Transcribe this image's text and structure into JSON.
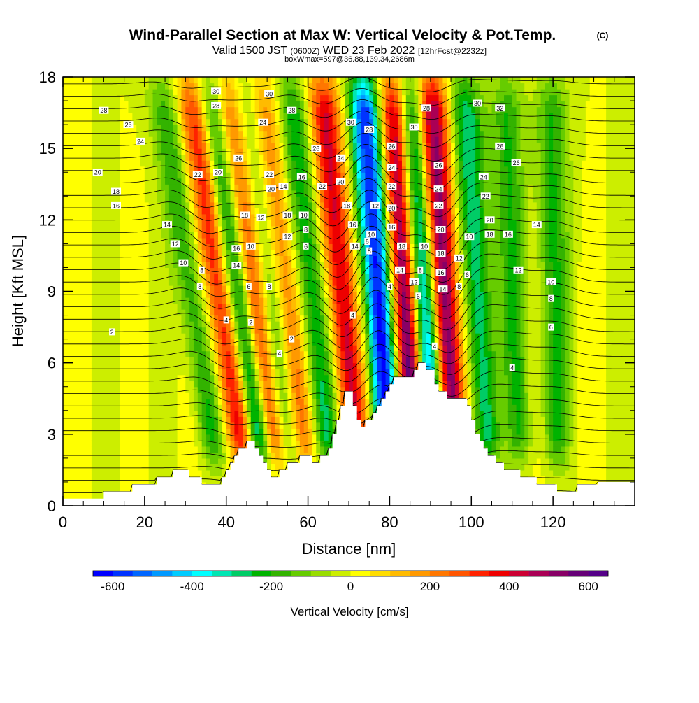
{
  "chart_data": {
    "type": "heatmap",
    "title": "Wind-Parallel Section at Max W: Vertical Velocity & Pot.Temp.",
    "copyright": "(C)",
    "subtitle_main": "Valid 1500 JST ",
    "subtitle_z": "(0600Z)",
    "subtitle_day": " WED 23 Feb 2022 ",
    "subtitle_fcst": "[12hrFcst@2232z]",
    "subtitle2": "boxWmax=597@36.88,139.34,2686m",
    "xlabel": "Distance [nm]",
    "ylabel": "Height [Kft MSL]",
    "xlim": [
      0,
      140
    ],
    "ylim": [
      0,
      18
    ],
    "xticks": [
      0,
      20,
      40,
      60,
      80,
      100,
      120
    ],
    "yticks": [
      0,
      3,
      6,
      9,
      12,
      15,
      18
    ],
    "colorbar": {
      "label": "Vertical Velocity [cm/s]",
      "ticks": [
        -600,
        -400,
        -200,
        0,
        200,
        400,
        600
      ],
      "range": [
        -650,
        650
      ],
      "colors": [
        "#0000ff",
        "#0033ff",
        "#0066ff",
        "#0099ff",
        "#00ccff",
        "#00ffff",
        "#00e6b3",
        "#00cc66",
        "#00b300",
        "#33b300",
        "#66cc00",
        "#99dd00",
        "#ccee00",
        "#ffff00",
        "#ffdd00",
        "#ffbb00",
        "#ff9900",
        "#ff7700",
        "#ff5500",
        "#ff2200",
        "#ee0000",
        "#cc0033",
        "#aa0055",
        "#880066",
        "#660077",
        "#550088"
      ]
    },
    "terrain": [
      [
        0,
        0.3
      ],
      [
        10,
        0.3
      ],
      [
        10,
        0.6
      ],
      [
        17,
        0.6
      ],
      [
        17,
        0.9
      ],
      [
        23,
        0.9
      ],
      [
        23,
        1.2
      ],
      [
        27,
        1.2
      ],
      [
        27,
        1.5
      ],
      [
        31,
        1.5
      ],
      [
        31,
        1.2
      ],
      [
        34,
        1.2
      ],
      [
        34,
        0.9
      ],
      [
        39,
        0.9
      ],
      [
        39,
        1.2
      ],
      [
        40,
        1.2
      ],
      [
        40,
        1.5
      ],
      [
        41,
        1.5
      ],
      [
        41,
        1.8
      ],
      [
        42,
        1.8
      ],
      [
        42,
        2.1
      ],
      [
        43,
        2.1
      ],
      [
        43,
        2.4
      ],
      [
        45,
        2.4
      ],
      [
        45,
        2.7
      ],
      [
        47,
        2.7
      ],
      [
        47,
        2.4
      ],
      [
        48,
        2.4
      ],
      [
        48,
        2.1
      ],
      [
        49,
        2.1
      ],
      [
        49,
        1.8
      ],
      [
        50,
        1.8
      ],
      [
        50,
        1.5
      ],
      [
        51,
        1.5
      ],
      [
        51,
        1.2
      ],
      [
        53,
        1.2
      ],
      [
        53,
        1.5
      ],
      [
        55,
        1.5
      ],
      [
        55,
        1.8
      ],
      [
        58,
        1.8
      ],
      [
        58,
        2.1
      ],
      [
        61,
        2.1
      ],
      [
        61,
        1.8
      ],
      [
        63,
        1.8
      ],
      [
        63,
        2.1
      ],
      [
        65,
        2.1
      ],
      [
        65,
        2.4
      ],
      [
        66,
        2.4
      ],
      [
        66,
        3.0
      ],
      [
        67,
        3.0
      ],
      [
        67,
        3.6
      ],
      [
        68,
        3.6
      ],
      [
        68,
        4.2
      ],
      [
        69,
        4.2
      ],
      [
        69,
        4.8
      ],
      [
        71,
        4.8
      ],
      [
        71,
        4.2
      ],
      [
        72,
        4.2
      ],
      [
        72,
        3.6
      ],
      [
        73,
        3.6
      ],
      [
        73,
        3.3
      ],
      [
        74,
        3.3
      ],
      [
        74,
        3.6
      ],
      [
        76,
        3.6
      ],
      [
        76,
        3.9
      ],
      [
        77,
        3.9
      ],
      [
        77,
        4.2
      ],
      [
        78,
        4.2
      ],
      [
        78,
        4.5
      ],
      [
        79,
        4.5
      ],
      [
        79,
        4.8
      ],
      [
        80,
        4.8
      ],
      [
        80,
        5.1
      ],
      [
        81,
        5.1
      ],
      [
        81,
        5.4
      ],
      [
        86,
        5.4
      ],
      [
        86,
        5.7
      ],
      [
        87,
        5.7
      ],
      [
        87,
        6.0
      ],
      [
        89,
        6.0
      ],
      [
        89,
        5.7
      ],
      [
        91,
        5.7
      ],
      [
        91,
        5.1
      ],
      [
        92,
        5.1
      ],
      [
        92,
        4.8
      ],
      [
        94,
        4.8
      ],
      [
        94,
        4.5
      ],
      [
        99,
        4.5
      ],
      [
        99,
        4.2
      ],
      [
        100,
        4.2
      ],
      [
        100,
        3.6
      ],
      [
        101,
        3.6
      ],
      [
        101,
        3.0
      ],
      [
        102,
        3.0
      ],
      [
        102,
        2.7
      ],
      [
        103,
        2.7
      ],
      [
        103,
        2.4
      ],
      [
        104,
        2.4
      ],
      [
        104,
        2.1
      ],
      [
        106,
        2.1
      ],
      [
        106,
        1.8
      ],
      [
        108,
        1.8
      ],
      [
        108,
        1.5
      ],
      [
        112,
        1.5
      ],
      [
        112,
        1.2
      ],
      [
        116,
        1.2
      ],
      [
        116,
        0.9
      ],
      [
        121,
        0.9
      ],
      [
        121,
        0.6
      ],
      [
        126,
        0.6
      ],
      [
        126,
        0.9
      ],
      [
        131,
        0.9
      ],
      [
        131,
        1.0
      ],
      [
        140,
        1.0
      ]
    ],
    "updraft_bands": [
      {
        "x_surface": 44,
        "tilt": 0.9,
        "w_peak": 380
      },
      {
        "x_surface": 52,
        "tilt": 0.9,
        "w_peak": 420
      },
      {
        "x_surface": 59,
        "tilt": 0.75,
        "w_peak": 250
      },
      {
        "x_surface": 72,
        "tilt": 0.6,
        "w_peak": 420
      },
      {
        "x_surface": 86,
        "tilt": 0.35,
        "w_peak": 620
      },
      {
        "x_surface": 96,
        "tilt": 0.45,
        "w_peak": 597
      }
    ],
    "downdraft_bands": [
      {
        "x_surface": 37,
        "tilt": 0.9,
        "w_peak": -200
      },
      {
        "x_surface": 49,
        "tilt": 0.9,
        "w_peak": -440
      },
      {
        "x_surface": 56,
        "tilt": 0.8,
        "w_peak": -200
      },
      {
        "x_surface": 65,
        "tilt": 0.65,
        "w_peak": -250
      },
      {
        "x_surface": 80,
        "tilt": 0.45,
        "w_peak": -620
      },
      {
        "x_surface": 91,
        "tilt": 0.45,
        "w_peak": -560
      },
      {
        "x_surface": 104,
        "tilt": 0.4,
        "w_peak": -300
      },
      {
        "x_surface": 112,
        "tilt": 0.25,
        "w_peak": -200
      },
      {
        "x_surface": 121,
        "tilt": 0.1,
        "w_peak": -200
      }
    ],
    "contour_labels": [
      {
        "text": "30",
        "x": 37.5,
        "y": 17.4
      },
      {
        "text": "28",
        "x": 37.5,
        "y": 16.8
      },
      {
        "text": "28",
        "x": 10,
        "y": 16.6
      },
      {
        "text": "26",
        "x": 16,
        "y": 16.0
      },
      {
        "text": "24",
        "x": 19,
        "y": 15.3
      },
      {
        "text": "22",
        "x": 33,
        "y": 13.9
      },
      {
        "text": "20",
        "x": 38,
        "y": 14.0
      },
      {
        "text": "26",
        "x": 43,
        "y": 14.6
      },
      {
        "text": "20",
        "x": 8.5,
        "y": 14.0
      },
      {
        "text": "18",
        "x": 13,
        "y": 13.2
      },
      {
        "text": "16",
        "x": 13,
        "y": 12.6
      },
      {
        "text": "14",
        "x": 25.5,
        "y": 11.8
      },
      {
        "text": "12",
        "x": 27.5,
        "y": 11.0
      },
      {
        "text": "10",
        "x": 29.5,
        "y": 10.2
      },
      {
        "text": "8",
        "x": 34,
        "y": 9.9
      },
      {
        "text": "8",
        "x": 33.5,
        "y": 9.2
      },
      {
        "text": "16",
        "x": 42.5,
        "y": 10.8
      },
      {
        "text": "14",
        "x": 42.5,
        "y": 10.1
      },
      {
        "text": "10",
        "x": 46,
        "y": 10.9
      },
      {
        "text": "6",
        "x": 45.5,
        "y": 9.2
      },
      {
        "text": "18",
        "x": 44.5,
        "y": 12.2
      },
      {
        "text": "12",
        "x": 48.5,
        "y": 12.1
      },
      {
        "text": "4",
        "x": 40,
        "y": 7.8
      },
      {
        "text": "2",
        "x": 46,
        "y": 7.7
      },
      {
        "text": "2",
        "x": 12,
        "y": 7.3
      },
      {
        "text": "30",
        "x": 50.5,
        "y": 17.3
      },
      {
        "text": "24",
        "x": 49,
        "y": 16.1
      },
      {
        "text": "22",
        "x": 50.5,
        "y": 13.9
      },
      {
        "text": "20",
        "x": 51,
        "y": 13.3
      },
      {
        "text": "8",
        "x": 50.5,
        "y": 9.2
      },
      {
        "text": "4",
        "x": 53,
        "y": 6.4
      },
      {
        "text": "2",
        "x": 56,
        "y": 7.0
      },
      {
        "text": "28",
        "x": 56,
        "y": 16.6
      },
      {
        "text": "14",
        "x": 54,
        "y": 13.4
      },
      {
        "text": "18",
        "x": 55,
        "y": 12.2
      },
      {
        "text": "12",
        "x": 55,
        "y": 11.3
      },
      {
        "text": "16",
        "x": 58.5,
        "y": 13.8
      },
      {
        "text": "10",
        "x": 59,
        "y": 12.2
      },
      {
        "text": "8",
        "x": 59.5,
        "y": 11.6
      },
      {
        "text": "6",
        "x": 59.5,
        "y": 10.9
      },
      {
        "text": "26",
        "x": 62,
        "y": 15.0
      },
      {
        "text": "22",
        "x": 63.5,
        "y": 13.4
      },
      {
        "text": "24",
        "x": 68,
        "y": 14.6
      },
      {
        "text": "20",
        "x": 68,
        "y": 13.6
      },
      {
        "text": "18",
        "x": 69.5,
        "y": 12.6
      },
      {
        "text": "16",
        "x": 71,
        "y": 11.8
      },
      {
        "text": "14",
        "x": 71.5,
        "y": 10.9
      },
      {
        "text": "4",
        "x": 71,
        "y": 8.0
      },
      {
        "text": "30",
        "x": 70.5,
        "y": 16.1
      },
      {
        "text": "28",
        "x": 75,
        "y": 15.8
      },
      {
        "text": "12",
        "x": 76.5,
        "y": 12.6
      },
      {
        "text": "10",
        "x": 75.5,
        "y": 11.4
      },
      {
        "text": "8",
        "x": 75,
        "y": 10.7
      },
      {
        "text": "6",
        "x": 74.5,
        "y": 11.1
      },
      {
        "text": "4",
        "x": 80,
        "y": 9.2
      },
      {
        "text": "26",
        "x": 80.5,
        "y": 15.1
      },
      {
        "text": "24",
        "x": 80.5,
        "y": 14.2
      },
      {
        "text": "22",
        "x": 80.5,
        "y": 13.4
      },
      {
        "text": "20",
        "x": 80.5,
        "y": 12.5
      },
      {
        "text": "16",
        "x": 80.5,
        "y": 11.7
      },
      {
        "text": "18",
        "x": 83,
        "y": 10.9
      },
      {
        "text": "14",
        "x": 82.5,
        "y": 9.9
      },
      {
        "text": "30",
        "x": 86,
        "y": 15.9
      },
      {
        "text": "28",
        "x": 89,
        "y": 16.7
      },
      {
        "text": "12",
        "x": 86,
        "y": 9.4
      },
      {
        "text": "6",
        "x": 87,
        "y": 8.8
      },
      {
        "text": "8",
        "x": 87.5,
        "y": 9.9
      },
      {
        "text": "10",
        "x": 88.5,
        "y": 10.9
      },
      {
        "text": "4",
        "x": 91,
        "y": 6.7
      },
      {
        "text": "26",
        "x": 92,
        "y": 14.3
      },
      {
        "text": "24",
        "x": 92,
        "y": 13.3
      },
      {
        "text": "22",
        "x": 92,
        "y": 12.6
      },
      {
        "text": "20",
        "x": 92.5,
        "y": 11.6
      },
      {
        "text": "18",
        "x": 92.5,
        "y": 10.6
      },
      {
        "text": "16",
        "x": 92.5,
        "y": 9.8
      },
      {
        "text": "14",
        "x": 93,
        "y": 9.1
      },
      {
        "text": "12",
        "x": 97,
        "y": 10.4
      },
      {
        "text": "10",
        "x": 99.5,
        "y": 11.3
      },
      {
        "text": "6",
        "x": 99,
        "y": 9.7
      },
      {
        "text": "8",
        "x": 97,
        "y": 9.2
      },
      {
        "text": "30",
        "x": 101.5,
        "y": 16.9
      },
      {
        "text": "32",
        "x": 107,
        "y": 16.7
      },
      {
        "text": "26",
        "x": 107,
        "y": 15.1
      },
      {
        "text": "26",
        "x": 111,
        "y": 14.4
      },
      {
        "text": "24",
        "x": 103,
        "y": 13.8
      },
      {
        "text": "22",
        "x": 103.5,
        "y": 13.0
      },
      {
        "text": "20",
        "x": 104.5,
        "y": 12.0
      },
      {
        "text": "18",
        "x": 104.5,
        "y": 11.4
      },
      {
        "text": "16",
        "x": 109,
        "y": 11.4
      },
      {
        "text": "14",
        "x": 116,
        "y": 11.8
      },
      {
        "text": "12",
        "x": 111.5,
        "y": 9.9
      },
      {
        "text": "10",
        "x": 119.5,
        "y": 9.4
      },
      {
        "text": "8",
        "x": 119.5,
        "y": 8.7
      },
      {
        "text": "6",
        "x": 119.5,
        "y": 7.5
      },
      {
        "text": "4",
        "x": 110,
        "y": 5.8
      }
    ]
  }
}
